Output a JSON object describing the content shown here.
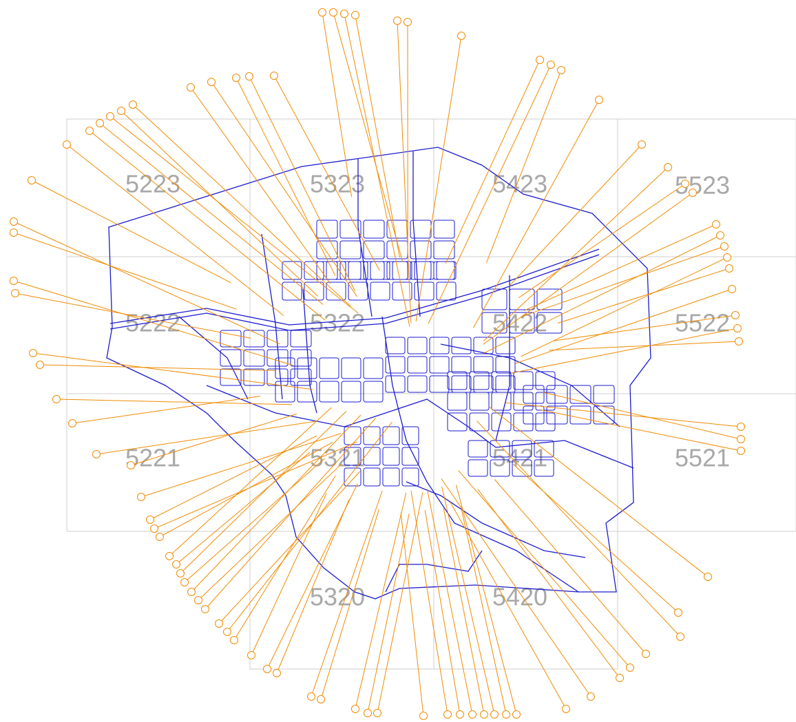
{
  "grid_labels": [
    "5223",
    "5323",
    "5423",
    "5523",
    "5222",
    "5322",
    "5422",
    "5522",
    "5221",
    "5321",
    "5421",
    "5521",
    "5320",
    "5420"
  ]
}
